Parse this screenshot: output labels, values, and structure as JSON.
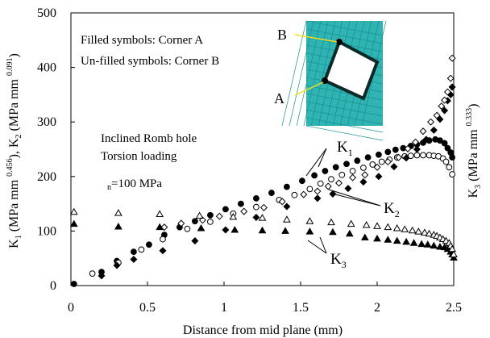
{
  "chart_data": {
    "type": "scatter",
    "xlabel": "Distance from mid plane (mm)",
    "ylabel_left": {
      "parts": [
        "K",
        "1",
        " (MPa mm ",
        "0.456",
        "), K",
        "2",
        " (MPa mm ",
        "0.091",
        ")"
      ]
    },
    "ylabel_right": {
      "parts": [
        "K",
        "3",
        " (MPa mm ",
        "0.333",
        ")"
      ]
    },
    "xlim": [
      0,
      2.5
    ],
    "ylim": [
      0,
      500
    ],
    "xticks": [
      {
        "value": 0,
        "label": "0"
      },
      {
        "value": 0.5,
        "label": "0.5"
      },
      {
        "value": 1,
        "label": "1"
      },
      {
        "value": 1.5,
        "label": "1.5"
      },
      {
        "value": 2,
        "label": "2"
      },
      {
        "value": 2.5,
        "label": "2.5"
      }
    ],
    "yticks": [
      {
        "value": 0,
        "label": "0"
      },
      {
        "value": 100,
        "label": "100"
      },
      {
        "value": 200,
        "label": "200"
      },
      {
        "value": 300,
        "label": "300"
      },
      {
        "value": 400,
        "label": "400"
      },
      {
        "value": 500,
        "label": "500"
      }
    ],
    "legend_notes": [
      "Filled symbols: Corner A",
      "Un-filled symbols: Corner B"
    ],
    "case_notes": [
      "Inclined Romb hole",
      "Torsion loading"
    ],
    "stress_note": {
      "sub": "n",
      "rest": "=100 MPa"
    },
    "inset_labels": {
      "b": "B",
      "a": "A"
    },
    "inset_colors": {
      "background": "#2fb3b3",
      "mesh": "#1a8f90",
      "hole": "#ffffff",
      "arrow": "#f0e020"
    },
    "callouts": [
      {
        "main": "K",
        "sub": "1"
      },
      {
        "main": "K",
        "sub": "2"
      },
      {
        "main": "K",
        "sub": "3"
      }
    ],
    "series": [
      {
        "symbol": "circle",
        "filled": true,
        "x": [
          0.02,
          0.2,
          0.3,
          0.41,
          0.51,
          0.61,
          0.71,
          0.81,
          0.91,
          1.01,
          1.11,
          1.21,
          1.31,
          1.41,
          1.51,
          1.59,
          1.66,
          1.73,
          1.8,
          1.87,
          1.94,
          2.01,
          2.07,
          2.12,
          2.17,
          2.22,
          2.26,
          2.3,
          2.34,
          2.38,
          2.41,
          2.44,
          2.46,
          2.48,
          2.49
        ],
        "y": [
          3,
          25,
          45,
          62,
          75,
          93,
          107,
          118,
          129,
          140,
          150,
          160,
          170,
          181,
          192,
          202,
          210,
          217,
          223,
          229,
          235,
          240,
          245,
          249,
          252,
          256,
          259,
          262,
          266,
          268,
          266,
          261,
          252,
          244,
          235
        ]
      },
      {
        "symbol": "circle",
        "filled": false,
        "x": [
          0.14,
          0.31,
          0.46,
          0.6,
          0.76,
          0.91,
          1.06,
          1.21,
          1.36,
          1.46,
          1.56,
          1.63,
          1.7,
          1.77,
          1.84,
          1.91,
          1.97,
          2.03,
          2.08,
          2.13,
          2.18,
          2.22,
          2.26,
          2.3,
          2.34,
          2.37,
          2.4,
          2.43,
          2.45,
          2.47,
          2.49
        ],
        "y": [
          22,
          42,
          66,
          85,
          104,
          117,
          132,
          144,
          157,
          166,
          177,
          187,
          195,
          203,
          210,
          216,
          222,
          227,
          231,
          235,
          237,
          238,
          239,
          239,
          239,
          238,
          237,
          233,
          227,
          217,
          204
        ]
      },
      {
        "symbol": "diamond",
        "filled": true,
        "x": [
          0.2,
          0.3,
          0.41,
          0.6,
          0.81,
          1.01,
          1.21,
          1.41,
          1.61,
          1.71,
          1.81,
          1.91,
          2.01,
          2.11,
          2.19,
          2.26,
          2.32,
          2.37,
          2.41,
          2.44,
          2.46,
          2.48,
          2.49
        ],
        "y": [
          18,
          37,
          48,
          64,
          82,
          102,
          125,
          145,
          160,
          168,
          178,
          190,
          200,
          218,
          234,
          250,
          268,
          285,
          305,
          321,
          339,
          350,
          364
        ]
      },
      {
        "symbol": "diamond",
        "filled": false,
        "x": [
          0.61,
          0.72,
          0.86,
          0.97,
          1.13,
          1.26,
          1.38,
          1.52,
          1.61,
          1.68,
          1.75,
          1.84,
          1.92,
          2.0,
          2.07,
          2.14,
          2.2,
          2.25,
          2.3,
          2.35,
          2.39,
          2.42,
          2.44,
          2.46,
          2.48,
          2.49
        ],
        "y": [
          107,
          114,
          120,
          127,
          136,
          143,
          154,
          167,
          173,
          182,
          188,
          198,
          203,
          217,
          227,
          235,
          251,
          263,
          283,
          300,
          312,
          329,
          340,
          355,
          380,
          417
        ]
      },
      {
        "symbol": "triangle",
        "filled": true,
        "x": [
          0.02,
          0.31,
          0.58,
          0.85,
          1.07,
          1.25,
          1.4,
          1.56,
          1.71,
          1.82,
          1.92,
          2.0,
          2.07,
          2.13,
          2.19,
          2.24,
          2.29,
          2.33,
          2.37,
          2.41,
          2.44,
          2.46,
          2.48,
          2.49,
          2.5
        ],
        "y": [
          113,
          108,
          107,
          105,
          102,
          101,
          100,
          99,
          98,
          95,
          88,
          86,
          84,
          82,
          80,
          78,
          76,
          75,
          73,
          71,
          70,
          67,
          62,
          57,
          51
        ]
      },
      {
        "symbol": "triangle",
        "filled": false,
        "x": [
          0.02,
          0.31,
          0.58,
          0.84,
          1.06,
          1.25,
          1.41,
          1.56,
          1.7,
          1.83,
          1.93,
          2.0,
          2.07,
          2.13,
          2.18,
          2.23,
          2.27,
          2.31,
          2.34,
          2.37,
          2.39,
          2.41,
          2.43,
          2.45,
          2.47,
          2.48,
          2.49,
          2.5
        ],
        "y": [
          135,
          133,
          131,
          128,
          126,
          124,
          121,
          118,
          116,
          113,
          111,
          109,
          107,
          105,
          103,
          101,
          99,
          97,
          95,
          93,
          91,
          88,
          85,
          82,
          78,
          73,
          67,
          57
        ]
      }
    ]
  }
}
